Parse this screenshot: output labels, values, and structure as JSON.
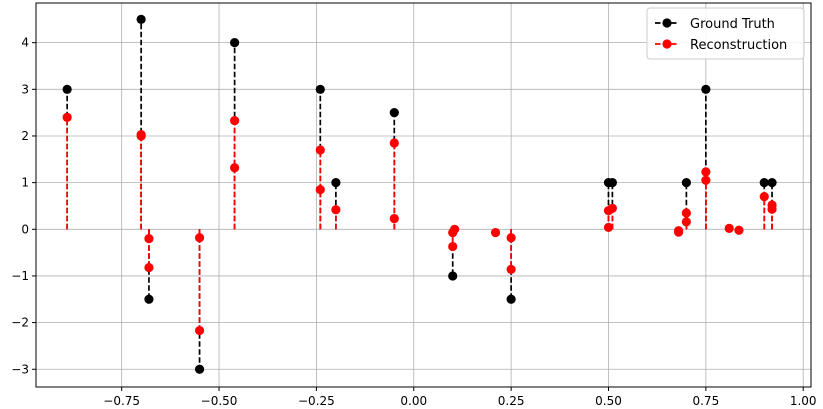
{
  "chart_data": {
    "type": "scatter",
    "title": "",
    "xlabel": "",
    "ylabel": "",
    "xlim": [
      -0.97,
      1.02
    ],
    "ylim": [
      -3.38,
      4.85
    ],
    "grid": true,
    "legend_position": "top-right",
    "x_ticks": [
      -0.75,
      -0.5,
      -0.25,
      0.0,
      0.25,
      0.5,
      0.75,
      1.0
    ],
    "x_tick_labels": [
      "−0.75",
      "−0.50",
      "−0.25",
      "0.00",
      "0.25",
      "0.50",
      "0.75",
      "1.00"
    ],
    "y_ticks": [
      -3,
      -2,
      -1,
      0,
      1,
      2,
      3,
      4
    ],
    "y_tick_labels": [
      "−3",
      "−2",
      "−1",
      "0",
      "1",
      "2",
      "3",
      "4"
    ],
    "series": [
      {
        "name": "Ground Truth",
        "color": "#000000",
        "style": "stem-dashed",
        "points": [
          {
            "x": -0.89,
            "y": 3.0
          },
          {
            "x": -0.7,
            "y": 4.5
          },
          {
            "x": -0.68,
            "y": -1.5
          },
          {
            "x": -0.55,
            "y": -3.0
          },
          {
            "x": -0.46,
            "y": 4.0
          },
          {
            "x": -0.24,
            "y": 3.0
          },
          {
            "x": -0.2,
            "y": 1.0
          },
          {
            "x": -0.05,
            "y": 2.5
          },
          {
            "x": 0.1,
            "y": -1.0
          },
          {
            "x": 0.25,
            "y": -1.5
          },
          {
            "x": 0.5,
            "y": 1.0
          },
          {
            "x": 0.51,
            "y": 1.0
          },
          {
            "x": 0.7,
            "y": 1.0
          },
          {
            "x": 0.75,
            "y": 3.0
          },
          {
            "x": 0.9,
            "y": 1.0
          },
          {
            "x": 0.92,
            "y": 1.0
          }
        ]
      },
      {
        "name": "Reconstruction",
        "color": "#ff0000",
        "style": "stem-dashed",
        "points": [
          {
            "x": -0.89,
            "y": 2.4
          },
          {
            "x": -0.7,
            "y": 2.0
          },
          {
            "x": -0.7,
            "y": 2.03
          },
          {
            "x": -0.68,
            "y": -0.2
          },
          {
            "x": -0.68,
            "y": -0.82
          },
          {
            "x": -0.55,
            "y": -0.18
          },
          {
            "x": -0.55,
            "y": -2.17
          },
          {
            "x": -0.46,
            "y": 2.33
          },
          {
            "x": -0.46,
            "y": 1.32
          },
          {
            "x": -0.24,
            "y": 1.7
          },
          {
            "x": -0.24,
            "y": 0.85
          },
          {
            "x": -0.2,
            "y": 0.42
          },
          {
            "x": -0.05,
            "y": 1.85
          },
          {
            "x": -0.05,
            "y": 0.23
          },
          {
            "x": 0.1,
            "y": -0.07
          },
          {
            "x": 0.1,
            "y": -0.37
          },
          {
            "x": 0.105,
            "y": 0.0
          },
          {
            "x": 0.21,
            "y": -0.07
          },
          {
            "x": 0.25,
            "y": -0.18
          },
          {
            "x": 0.25,
            "y": -0.86
          },
          {
            "x": 0.5,
            "y": 0.4
          },
          {
            "x": 0.5,
            "y": 0.04
          },
          {
            "x": 0.51,
            "y": 0.45
          },
          {
            "x": 0.68,
            "y": -0.03
          },
          {
            "x": 0.68,
            "y": -0.06
          },
          {
            "x": 0.7,
            "y": 0.35
          },
          {
            "x": 0.7,
            "y": 0.16
          },
          {
            "x": 0.75,
            "y": 1.23
          },
          {
            "x": 0.75,
            "y": 1.05
          },
          {
            "x": 0.81,
            "y": 0.02
          },
          {
            "x": 0.835,
            "y": -0.02
          },
          {
            "x": 0.9,
            "y": 0.7
          },
          {
            "x": 0.92,
            "y": 0.52
          },
          {
            "x": 0.92,
            "y": 0.43
          }
        ]
      }
    ],
    "legend": [
      {
        "label": "Ground Truth",
        "color": "#000000"
      },
      {
        "label": "Reconstruction",
        "color": "#ff0000"
      }
    ]
  }
}
